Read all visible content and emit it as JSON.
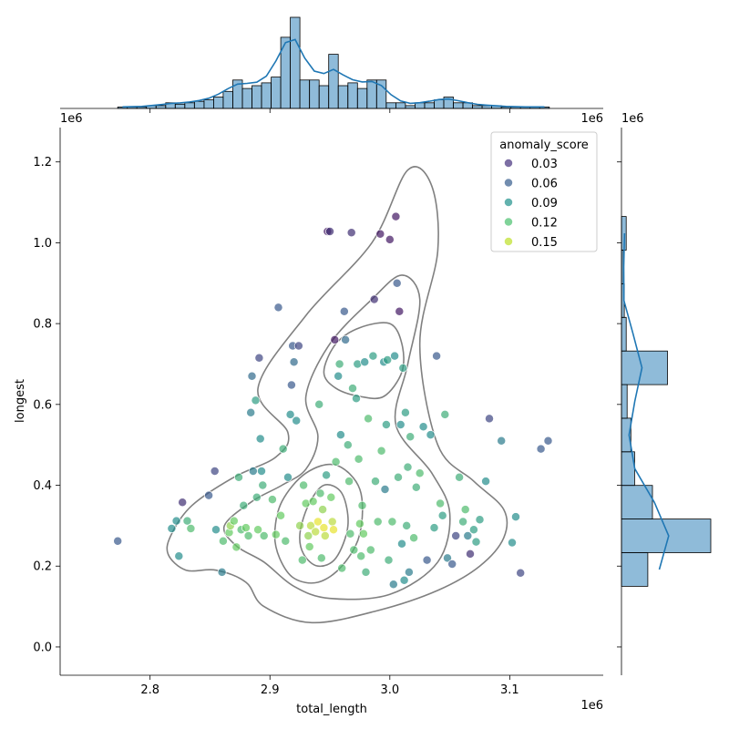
{
  "chart_data": {
    "type": "scatter",
    "xlabel": "total_length",
    "ylabel": "longest",
    "x_offset_label": "1e6",
    "y_offset_label": "1e6",
    "xlim": [
      2.725,
      3.178
    ],
    "ylim": [
      -0.07,
      1.285
    ],
    "x_ticks": [
      2.8,
      2.9,
      3.0,
      3.1
    ],
    "x_tick_labels": [
      "2.8",
      "2.9",
      "3.0",
      "3.1"
    ],
    "y_ticks": [
      0.0,
      0.2,
      0.4,
      0.6,
      0.8,
      1.0,
      1.2
    ],
    "y_tick_labels": [
      "0.0",
      "0.2",
      "0.4",
      "0.6",
      "0.8",
      "1.0",
      "1.2"
    ],
    "legend": {
      "title": "anomaly_score",
      "placement": "top-right",
      "entries": [
        {
          "label": "0.03",
          "color": "#46327e"
        },
        {
          "label": "0.06",
          "color": "#365c8d"
        },
        {
          "label": "0.09",
          "color": "#21918c"
        },
        {
          "label": "0.12",
          "color": "#4ac16d"
        },
        {
          "label": "0.15",
          "color": "#bddf26"
        }
      ]
    },
    "points": [
      [
        2.773,
        0.262,
        0.06
      ],
      [
        2.818,
        0.293,
        0.09
      ],
      [
        2.822,
        0.312,
        0.09
      ],
      [
        2.824,
        0.225,
        0.09
      ],
      [
        2.827,
        0.358,
        0.04
      ],
      [
        2.831,
        0.312,
        0.11
      ],
      [
        2.834,
        0.293,
        0.12
      ],
      [
        2.849,
        0.375,
        0.06
      ],
      [
        2.854,
        0.435,
        0.05
      ],
      [
        2.855,
        0.29,
        0.09
      ],
      [
        2.86,
        0.185,
        0.08
      ],
      [
        2.861,
        0.262,
        0.12
      ],
      [
        2.866,
        0.283,
        0.13
      ],
      [
        2.867,
        0.3,
        0.14
      ],
      [
        2.87,
        0.312,
        0.13
      ],
      [
        2.872,
        0.247,
        0.13
      ],
      [
        2.874,
        0.42,
        0.11
      ],
      [
        2.876,
        0.29,
        0.12
      ],
      [
        2.878,
        0.35,
        0.11
      ],
      [
        2.88,
        0.295,
        0.13
      ],
      [
        2.882,
        0.275,
        0.12
      ],
      [
        2.884,
        0.58,
        0.08
      ],
      [
        2.885,
        0.67,
        0.07
      ],
      [
        2.886,
        0.435,
        0.08
      ],
      [
        2.888,
        0.61,
        0.1
      ],
      [
        2.889,
        0.37,
        0.11
      ],
      [
        2.89,
        0.29,
        0.13
      ],
      [
        2.891,
        0.715,
        0.05
      ],
      [
        2.892,
        0.515,
        0.09
      ],
      [
        2.893,
        0.435,
        0.09
      ],
      [
        2.894,
        0.4,
        0.11
      ],
      [
        2.895,
        0.275,
        0.12
      ],
      [
        2.902,
        0.365,
        0.12
      ],
      [
        2.905,
        0.278,
        0.13
      ],
      [
        2.907,
        0.84,
        0.06
      ],
      [
        2.909,
        0.325,
        0.13
      ],
      [
        2.911,
        0.49,
        0.11
      ],
      [
        2.913,
        0.262,
        0.12
      ],
      [
        2.915,
        0.42,
        0.09
      ],
      [
        2.917,
        0.575,
        0.09
      ],
      [
        2.918,
        0.648,
        0.06
      ],
      [
        2.919,
        0.745,
        0.06
      ],
      [
        2.92,
        0.705,
        0.07
      ],
      [
        2.922,
        0.56,
        0.09
      ],
      [
        2.924,
        0.745,
        0.05
      ],
      [
        2.925,
        0.3,
        0.14
      ],
      [
        2.927,
        0.215,
        0.12
      ],
      [
        2.928,
        0.4,
        0.12
      ],
      [
        2.93,
        0.355,
        0.13
      ],
      [
        2.932,
        0.275,
        0.14
      ],
      [
        2.933,
        0.248,
        0.13
      ],
      [
        2.934,
        0.3,
        0.15
      ],
      [
        2.936,
        0.36,
        0.13
      ],
      [
        2.938,
        0.285,
        0.15
      ],
      [
        2.94,
        0.31,
        0.16
      ],
      [
        2.941,
        0.6,
        0.11
      ],
      [
        2.942,
        0.38,
        0.12
      ],
      [
        2.943,
        0.22,
        0.12
      ],
      [
        2.944,
        0.34,
        0.14
      ],
      [
        2.945,
        0.295,
        0.16
      ],
      [
        2.946,
        0.275,
        0.15
      ],
      [
        2.947,
        0.425,
        0.1
      ],
      [
        2.948,
        1.028,
        0.03
      ],
      [
        2.95,
        1.028,
        0.04
      ],
      [
        2.951,
        0.37,
        0.13
      ],
      [
        2.952,
        0.31,
        0.15
      ],
      [
        2.953,
        0.29,
        0.16
      ],
      [
        2.954,
        0.76,
        0.03
      ],
      [
        2.955,
        0.458,
        0.12
      ],
      [
        2.957,
        0.67,
        0.09
      ],
      [
        2.958,
        0.7,
        0.11
      ],
      [
        2.959,
        0.525,
        0.09
      ],
      [
        2.96,
        0.195,
        0.12
      ],
      [
        2.962,
        0.83,
        0.06
      ],
      [
        2.963,
        0.76,
        0.07
      ],
      [
        2.965,
        0.5,
        0.11
      ],
      [
        2.966,
        0.41,
        0.12
      ],
      [
        2.967,
        0.28,
        0.12
      ],
      [
        2.968,
        1.025,
        0.04
      ],
      [
        2.969,
        0.64,
        0.11
      ],
      [
        2.97,
        0.24,
        0.12
      ],
      [
        2.972,
        0.615,
        0.1
      ],
      [
        2.973,
        0.7,
        0.1
      ],
      [
        2.974,
        0.465,
        0.12
      ],
      [
        2.975,
        0.305,
        0.13
      ],
      [
        2.976,
        0.225,
        0.12
      ],
      [
        2.977,
        0.35,
        0.12
      ],
      [
        2.978,
        0.28,
        0.13
      ],
      [
        2.979,
        0.705,
        0.09
      ],
      [
        2.98,
        0.185,
        0.11
      ],
      [
        2.982,
        0.565,
        0.12
      ],
      [
        2.984,
        0.24,
        0.12
      ],
      [
        2.986,
        0.72,
        0.1
      ],
      [
        2.987,
        0.86,
        0.04
      ],
      [
        2.988,
        0.41,
        0.11
      ],
      [
        2.99,
        0.31,
        0.12
      ],
      [
        2.992,
        1.022,
        0.03
      ],
      [
        2.993,
        0.485,
        0.12
      ],
      [
        2.995,
        0.705,
        0.09
      ],
      [
        2.996,
        0.39,
        0.08
      ],
      [
        2.997,
        0.55,
        0.1
      ],
      [
        2.998,
        0.71,
        0.1
      ],
      [
        2.999,
        0.215,
        0.11
      ],
      [
        3.0,
        1.008,
        0.03
      ],
      [
        3.002,
        0.31,
        0.12
      ],
      [
        3.003,
        0.155,
        0.08
      ],
      [
        3.004,
        0.72,
        0.09
      ],
      [
        3.005,
        1.065,
        0.03
      ],
      [
        3.006,
        0.9,
        0.06
      ],
      [
        3.007,
        0.42,
        0.11
      ],
      [
        3.008,
        0.83,
        0.03
      ],
      [
        3.009,
        0.55,
        0.09
      ],
      [
        3.01,
        0.255,
        0.09
      ],
      [
        3.011,
        0.69,
        0.1
      ],
      [
        3.012,
        0.165,
        0.09
      ],
      [
        3.013,
        0.58,
        0.1
      ],
      [
        3.014,
        0.3,
        0.11
      ],
      [
        3.015,
        0.445,
        0.11
      ],
      [
        3.016,
        0.185,
        0.08
      ],
      [
        3.017,
        0.52,
        0.11
      ],
      [
        3.02,
        0.27,
        0.12
      ],
      [
        3.022,
        0.395,
        0.11
      ],
      [
        3.025,
        0.43,
        0.12
      ],
      [
        3.028,
        0.545,
        0.09
      ],
      [
        3.031,
        0.215,
        0.06
      ],
      [
        3.034,
        0.525,
        0.09
      ],
      [
        3.037,
        0.295,
        0.1
      ],
      [
        3.039,
        0.72,
        0.06
      ],
      [
        3.042,
        0.355,
        0.12
      ],
      [
        3.044,
        0.325,
        0.1
      ],
      [
        3.046,
        0.575,
        0.11
      ],
      [
        3.048,
        0.22,
        0.08
      ],
      [
        3.052,
        0.205,
        0.06
      ],
      [
        3.055,
        0.275,
        0.05
      ],
      [
        3.058,
        0.42,
        0.11
      ],
      [
        3.061,
        0.31,
        0.11
      ],
      [
        3.063,
        0.34,
        0.12
      ],
      [
        3.065,
        0.275,
        0.08
      ],
      [
        3.067,
        0.23,
        0.04
      ],
      [
        3.07,
        0.29,
        0.1
      ],
      [
        3.072,
        0.26,
        0.1
      ],
      [
        3.075,
        0.315,
        0.1
      ],
      [
        3.08,
        0.41,
        0.09
      ],
      [
        3.083,
        0.565,
        0.05
      ],
      [
        3.093,
        0.51,
        0.08
      ],
      [
        3.102,
        0.258,
        0.09
      ],
      [
        3.105,
        0.322,
        0.09
      ],
      [
        3.109,
        0.183,
        0.05
      ],
      [
        3.126,
        0.49,
        0.06
      ],
      [
        3.132,
        0.51,
        0.06
      ]
    ],
    "kde_contours": [
      [
        [
          2.818,
          0.28
        ],
        [
          2.835,
          0.35
        ],
        [
          2.87,
          0.42
        ],
        [
          2.905,
          0.47
        ],
        [
          2.915,
          0.53
        ],
        [
          2.89,
          0.64
        ],
        [
          2.93,
          0.82
        ],
        [
          2.985,
          1.0
        ],
        [
          3.015,
          1.18
        ],
        [
          3.035,
          1.14
        ],
        [
          3.04,
          0.98
        ],
        [
          3.025,
          0.75
        ],
        [
          3.04,
          0.5
        ],
        [
          3.07,
          0.41
        ],
        [
          3.095,
          0.34
        ],
        [
          3.095,
          0.27
        ],
        [
          3.075,
          0.2
        ],
        [
          3.04,
          0.14
        ],
        [
          2.99,
          0.09
        ],
        [
          2.935,
          0.06
        ],
        [
          2.895,
          0.1
        ],
        [
          2.88,
          0.16
        ],
        [
          2.855,
          0.19
        ],
        [
          2.83,
          0.19
        ],
        [
          2.815,
          0.23
        ],
        [
          2.818,
          0.28
        ]
      ],
      [
        [
          2.862,
          0.3
        ],
        [
          2.885,
          0.36
        ],
        [
          2.91,
          0.4
        ],
        [
          2.93,
          0.44
        ],
        [
          2.94,
          0.52
        ],
        [
          2.93,
          0.62
        ],
        [
          2.95,
          0.75
        ],
        [
          2.985,
          0.86
        ],
        [
          3.01,
          0.92
        ],
        [
          3.025,
          0.86
        ],
        [
          3.015,
          0.7
        ],
        [
          3.005,
          0.55
        ],
        [
          3.035,
          0.43
        ],
        [
          3.05,
          0.33
        ],
        [
          3.04,
          0.21
        ],
        [
          3.0,
          0.13
        ],
        [
          2.95,
          0.12
        ],
        [
          2.92,
          0.15
        ],
        [
          2.895,
          0.21
        ],
        [
          2.872,
          0.25
        ],
        [
          2.862,
          0.3
        ]
      ],
      [
        [
          2.904,
          0.28
        ],
        [
          2.91,
          0.36
        ],
        [
          2.93,
          0.43
        ],
        [
          2.955,
          0.45
        ],
        [
          2.975,
          0.39
        ],
        [
          2.975,
          0.28
        ],
        [
          2.96,
          0.2
        ],
        [
          2.94,
          0.16
        ],
        [
          2.92,
          0.17
        ],
        [
          2.908,
          0.22
        ],
        [
          2.904,
          0.28
        ]
      ],
      [
        [
          2.925,
          0.28
        ],
        [
          2.932,
          0.35
        ],
        [
          2.945,
          0.4
        ],
        [
          2.96,
          0.38
        ],
        [
          2.965,
          0.3
        ],
        [
          2.955,
          0.22
        ],
        [
          2.94,
          0.2
        ],
        [
          2.928,
          0.23
        ],
        [
          2.925,
          0.28
        ]
      ],
      [
        [
          2.945,
          0.68
        ],
        [
          2.955,
          0.75
        ],
        [
          2.975,
          0.79
        ],
        [
          3.0,
          0.8
        ],
        [
          3.01,
          0.75
        ],
        [
          3.01,
          0.68
        ],
        [
          2.995,
          0.62
        ],
        [
          2.975,
          0.62
        ],
        [
          2.955,
          0.64
        ],
        [
          2.945,
          0.68
        ]
      ]
    ],
    "hist_x": {
      "bin_edges": [
        2.773,
        3.133
      ],
      "bin_count": 45,
      "counts": [
        0.05,
        0.05,
        0.05,
        0.1,
        0.1,
        0.2,
        0.15,
        0.2,
        0.25,
        0.3,
        0.4,
        0.6,
        1.0,
        0.7,
        0.8,
        0.9,
        1.1,
        2.5,
        3.2,
        1.0,
        1.0,
        0.8,
        1.9,
        0.8,
        0.9,
        0.7,
        1.0,
        1.0,
        0.2,
        0.2,
        0.1,
        0.2,
        0.2,
        0.3,
        0.4,
        0.2,
        0.2,
        0.1,
        0.1,
        0.1,
        0.05,
        0.05,
        0.05,
        0.05,
        0.05
      ]
    },
    "hist_y": {
      "bin_edges": [
        0.15,
        1.065
      ],
      "bin_count": 11,
      "counts": [
        0.28,
        0.95,
        0.33,
        0.14,
        0.1,
        0.06,
        0.49,
        0.05,
        0.03,
        0.02,
        0.05
      ]
    }
  }
}
